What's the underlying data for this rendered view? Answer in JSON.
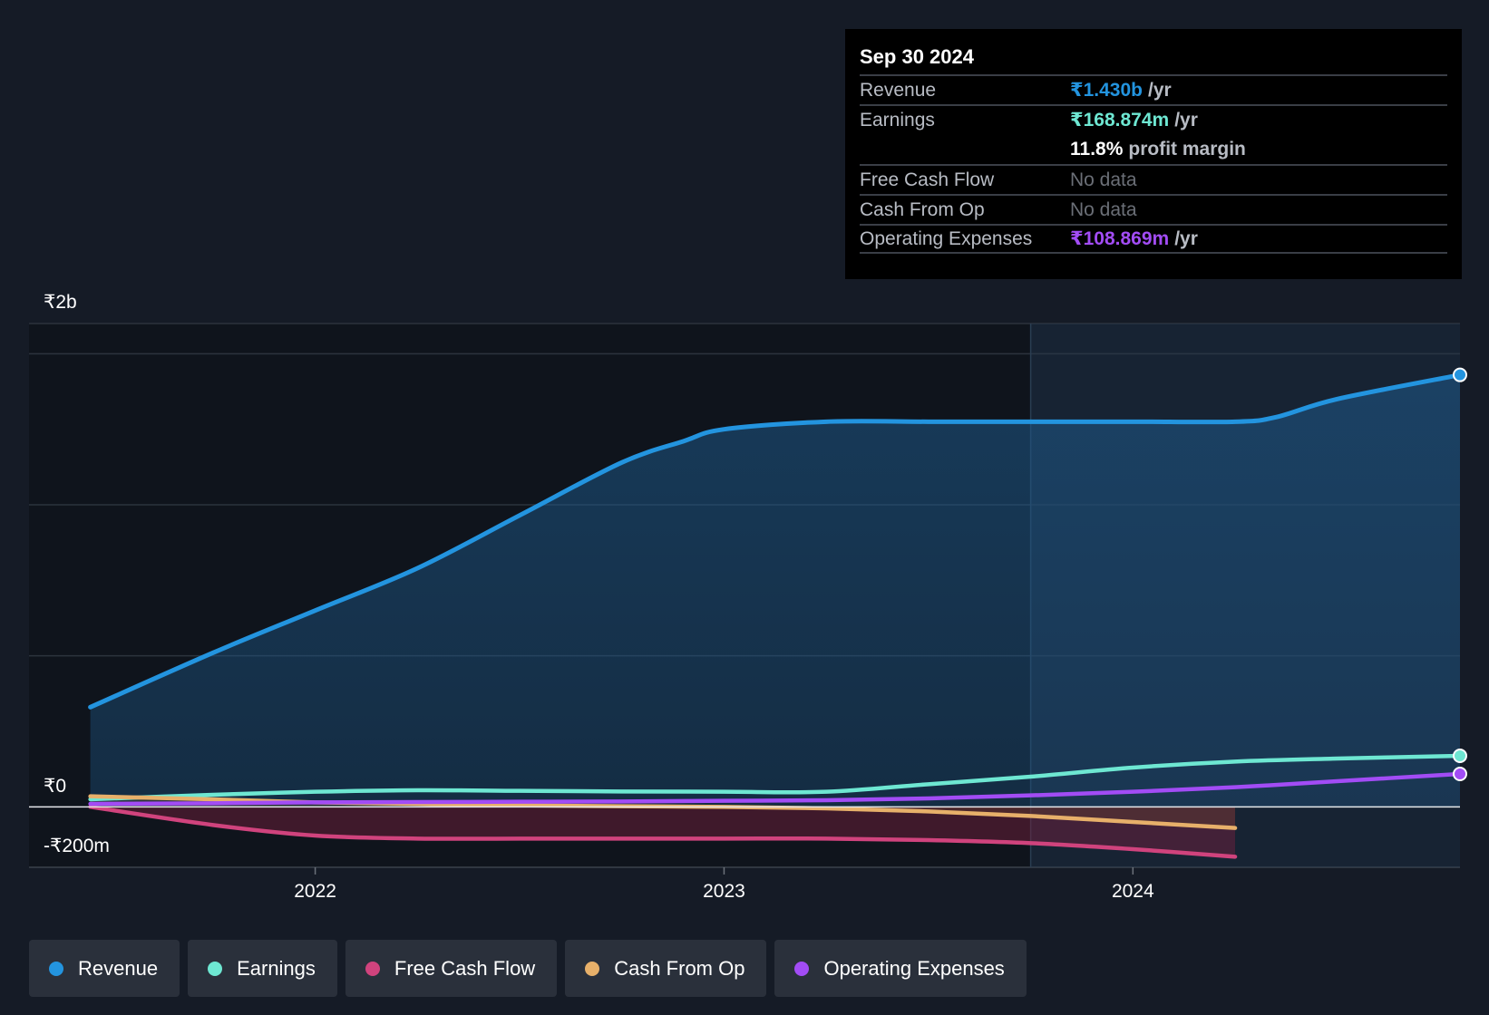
{
  "colors": {
    "background": "#151b26",
    "revenue": "#2394df",
    "earnings": "#6ee7d2",
    "free_cash_flow": "#d0437d",
    "cash_from_op": "#e7b06a",
    "operating_expenses": "#a24cf5"
  },
  "tooltip": {
    "date": "Sep 30 2024",
    "rows": [
      {
        "label": "Revenue",
        "value": "₹1.430b",
        "unit": "/yr",
        "color": "#2394df"
      },
      {
        "label": "Earnings",
        "value": "₹168.874m",
        "unit": "/yr",
        "color": "#6ee7d2"
      },
      {
        "label": "",
        "value": "11.8%",
        "unit": "profit margin",
        "color": "#ffffff"
      },
      {
        "label": "Free Cash Flow",
        "value": "No data",
        "unit": "",
        "color": ""
      },
      {
        "label": "Cash From Op",
        "value": "No data",
        "unit": "",
        "color": ""
      },
      {
        "label": "Operating Expenses",
        "value": "₹108.869m",
        "unit": "/yr",
        "color": "#a24cf5"
      }
    ]
  },
  "legend": [
    {
      "label": "Revenue",
      "color": "#2394df"
    },
    {
      "label": "Earnings",
      "color": "#6ee7d2"
    },
    {
      "label": "Free Cash Flow",
      "color": "#d0437d"
    },
    {
      "label": "Cash From Op",
      "color": "#e7b06a"
    },
    {
      "label": "Operating Expenses",
      "color": "#a24cf5"
    }
  ],
  "chart_data": {
    "type": "line",
    "title": "",
    "xlabel": "",
    "ylabel": "",
    "x_ticks": [
      "2022",
      "2023",
      "2024"
    ],
    "y_tick_labels": [
      {
        "label": "₹2b",
        "value": 1600
      },
      {
        "label": "₹0",
        "value": 0
      },
      {
        "label": "-₹200m",
        "value": -200
      }
    ],
    "ylim": [
      -200,
      1600
    ],
    "xlim": [
      2021.3,
      2024.8
    ],
    "units": "₹ millions",
    "past_data_from": 2023.75,
    "grid": true,
    "legend_position": "bottom",
    "series": [
      {
        "name": "Revenue",
        "key": "revenue",
        "fill": true,
        "x": [
          2021.45,
          2021.75,
          2022.0,
          2022.25,
          2022.5,
          2022.75,
          2022.9,
          2023.0,
          2023.25,
          2023.5,
          2023.75,
          2024.0,
          2024.25,
          2024.35,
          2024.5,
          2024.8
        ],
        "y": [
          330,
          510,
          650,
          790,
          965,
          1140,
          1210,
          1250,
          1275,
          1275,
          1275,
          1275,
          1275,
          1290,
          1350,
          1430
        ]
      },
      {
        "name": "Earnings",
        "key": "earnings",
        "fill": false,
        "x": [
          2021.45,
          2021.75,
          2022.0,
          2022.25,
          2022.5,
          2022.75,
          2023.0,
          2023.25,
          2023.5,
          2023.75,
          2024.0,
          2024.25,
          2024.5,
          2024.8
        ],
        "y": [
          25,
          40,
          50,
          55,
          53,
          51,
          50,
          50,
          75,
          100,
          130,
          150,
          160,
          169
        ]
      },
      {
        "name": "Free Cash Flow",
        "key": "free_cash_flow",
        "fill": true,
        "x": [
          2021.45,
          2021.75,
          2022.0,
          2022.25,
          2022.5,
          2022.75,
          2023.0,
          2023.25,
          2023.5,
          2023.75,
          2024.0,
          2024.25
        ],
        "y": [
          0,
          -60,
          -95,
          -105,
          -105,
          -105,
          -105,
          -105,
          -110,
          -120,
          -140,
          -165
        ]
      },
      {
        "name": "Cash From Op",
        "key": "cash_from_op",
        "fill": true,
        "x": [
          2021.45,
          2021.75,
          2022.0,
          2022.25,
          2022.5,
          2022.75,
          2023.0,
          2023.25,
          2023.5,
          2023.75,
          2024.0,
          2024.25
        ],
        "y": [
          35,
          25,
          15,
          10,
          5,
          2,
          0,
          -5,
          -15,
          -30,
          -50,
          -70
        ]
      },
      {
        "name": "Operating Expenses",
        "key": "operating_expenses",
        "fill": false,
        "x": [
          2021.45,
          2021.75,
          2022.0,
          2022.25,
          2022.5,
          2022.75,
          2023.0,
          2023.25,
          2023.5,
          2023.75,
          2024.0,
          2024.25,
          2024.5,
          2024.8
        ],
        "y": [
          10,
          12,
          15,
          16,
          17,
          18,
          20,
          22,
          28,
          38,
          50,
          65,
          85,
          109
        ]
      }
    ]
  }
}
